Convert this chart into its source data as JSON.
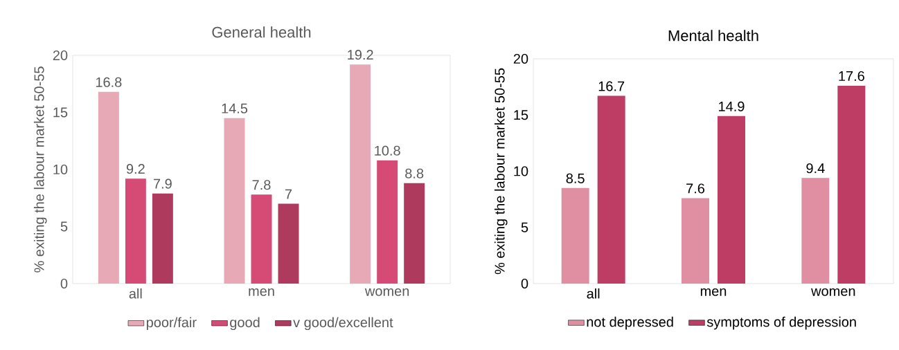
{
  "chart_data": [
    {
      "type": "bar",
      "title": "General health",
      "ylabel": "% exiting the labour market 50-55",
      "categories": [
        "all",
        "men",
        "women"
      ],
      "series": [
        {
          "name": "poor/fair",
          "color": "#e6a9b5",
          "values": [
            16.8,
            14.5,
            19.2
          ]
        },
        {
          "name": "good",
          "color": "#d64a76",
          "values": [
            9.2,
            7.8,
            10.8
          ]
        },
        {
          "name": "v good/excellent",
          "color": "#ae3a5d",
          "values": [
            7.9,
            7,
            8.8
          ]
        }
      ],
      "ylim": [
        0,
        20
      ],
      "yticks": [
        0,
        5,
        10,
        15,
        20
      ],
      "data_labels": true,
      "legend": "bottom",
      "grid": false
    },
    {
      "type": "bar",
      "title": "Mental health",
      "ylabel": "% exiting the labour market 50-55",
      "categories": [
        "all",
        "men",
        "women"
      ],
      "series": [
        {
          "name": "not depressed",
          "color": "#e08fa3",
          "values": [
            8.5,
            7.6,
            9.4
          ]
        },
        {
          "name": "symptoms of depression",
          "color": "#be3d64",
          "values": [
            16.7,
            14.9,
            17.6
          ]
        }
      ],
      "ylim": [
        0,
        20
      ],
      "yticks": [
        0,
        5,
        10,
        15,
        20
      ],
      "data_labels": true,
      "legend": "bottom",
      "grid": false
    }
  ]
}
